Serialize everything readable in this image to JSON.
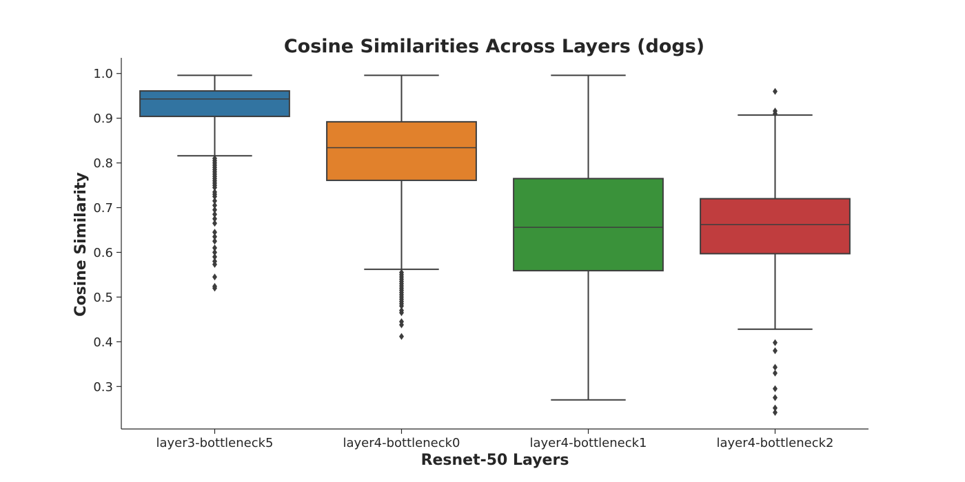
{
  "chart_data": {
    "type": "box",
    "title": "Cosine Similarities Across Layers (dogs)",
    "xlabel": "Resnet-50 Layers",
    "ylabel": "Cosine Similarity",
    "ylim": [
      0.205,
      1.035
    ],
    "yticks": [
      "0.3",
      "0.4",
      "0.5",
      "0.6",
      "0.7",
      "0.8",
      "0.9",
      "1.0"
    ],
    "grid": false,
    "categories": [
      "layer3-bottleneck5",
      "layer4-bottleneck0",
      "layer4-bottleneck1",
      "layer4-bottleneck2"
    ],
    "boxes": [
      {
        "category": "layer3-bottleneck5",
        "color": "#3274a1",
        "whisker_low": 0.816,
        "q1": 0.904,
        "median": 0.943,
        "q3": 0.961,
        "whisker_high": 0.996,
        "outliers": [
          0.52,
          0.524,
          0.545,
          0.573,
          0.58,
          0.59,
          0.6,
          0.61,
          0.625,
          0.635,
          0.645,
          0.665,
          0.675,
          0.685,
          0.695,
          0.705,
          0.715,
          0.725,
          0.73,
          0.735,
          0.745,
          0.75,
          0.755,
          0.76,
          0.765,
          0.77,
          0.775,
          0.78,
          0.785,
          0.79,
          0.795,
          0.8,
          0.805,
          0.81
        ]
      },
      {
        "category": "layer4-bottleneck0",
        "color": "#e1812c",
        "whisker_low": 0.562,
        "q1": 0.761,
        "median": 0.834,
        "q3": 0.892,
        "whisker_high": 0.996,
        "outliers": [
          0.412,
          0.438,
          0.445,
          0.465,
          0.47,
          0.48,
          0.485,
          0.49,
          0.495,
          0.5,
          0.505,
          0.51,
          0.515,
          0.52,
          0.525,
          0.53,
          0.535,
          0.54,
          0.545,
          0.55,
          0.555
        ]
      },
      {
        "category": "layer4-bottleneck1",
        "color": "#3a923a",
        "whisker_low": 0.27,
        "q1": 0.559,
        "median": 0.656,
        "q3": 0.765,
        "whisker_high": 0.996,
        "outliers": []
      },
      {
        "category": "layer4-bottleneck2",
        "color": "#c03d3e",
        "whisker_low": 0.428,
        "q1": 0.597,
        "median": 0.662,
        "q3": 0.72,
        "whisker_high": 0.907,
        "outliers": [
          0.242,
          0.252,
          0.275,
          0.295,
          0.33,
          0.343,
          0.38,
          0.398,
          0.91,
          0.916,
          0.96
        ]
      }
    ]
  }
}
